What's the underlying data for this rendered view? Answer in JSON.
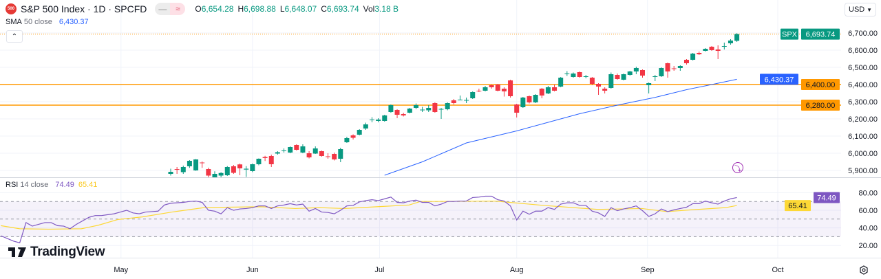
{
  "header": {
    "symbol_logo": "500",
    "title": "S&P 500 Index · 1D · SPCFD",
    "open_label": "O",
    "open": "6,654.28",
    "high_label": "H",
    "high": "6,698.88",
    "low_label": "L",
    "low": "6,648.07",
    "close_label": "C",
    "close": "6,693.74",
    "vol_label": "Vol",
    "vol": "3.18 B",
    "currency": "USD"
  },
  "sma_legend": {
    "name": "SMA",
    "params": "50 close",
    "value": "6,430.37"
  },
  "rsi_legend": {
    "name": "RSI",
    "params": "14 close",
    "value": "74.49",
    "ma_value": "65.41"
  },
  "brand": "TradingView",
  "colors": {
    "up": "#089981",
    "down": "#f23645",
    "sma": "#2962ff",
    "rsi": "#7e57c2",
    "rsi_ma": "#fdd835",
    "hline": "#ff9800"
  },
  "price_axis": {
    "ticks": [
      "6,700.00",
      "6,600.00",
      "6,500.00",
      "6,400.00",
      "6,300.00",
      "6,200.00",
      "6,100.00",
      "6,000.00",
      "5,900.00"
    ],
    "tick_values": [
      6700,
      6600,
      6500,
      6400,
      6300,
      6200,
      6100,
      6000,
      5900
    ],
    "last_price_tag": "SPX",
    "last_price": "6,693.74",
    "last_value": 6693.74,
    "sma_tag": "6,430.37",
    "sma_tag_value": 6430.37,
    "hline_tags": [
      "6,400.00",
      "6,280.00"
    ],
    "hline_values": [
      6400,
      6280
    ]
  },
  "rsi_axis": {
    "ticks": [
      "80.00",
      "60.00",
      "40.00",
      "20.00"
    ],
    "tick_values": [
      80,
      60,
      40,
      20
    ],
    "bands": [
      70,
      50,
      30
    ],
    "rsi_tag": "74.49",
    "rsi_tag_value": 74.49,
    "ma_tag": "65.41",
    "ma_tag_value": 65.41
  },
  "time_axis": [
    {
      "label": "May",
      "bar": -7.9
    },
    {
      "label": "Jun",
      "bar": 13
    },
    {
      "label": "Jul",
      "bar": 33.2
    },
    {
      "label": "Aug",
      "bar": 55
    },
    {
      "label": "Sep",
      "bar": 75.8
    },
    {
      "label": "Oct",
      "bar": 96.5
    }
  ],
  "chart_data": {
    "type": "candlestick",
    "candles": [
      [
        5880,
        5910,
        5870,
        5892
      ],
      [
        5908,
        5920,
        5880,
        5905
      ],
      [
        5890,
        5928,
        5880,
        5920
      ],
      [
        5924,
        5960,
        5915,
        5956
      ],
      [
        5900,
        5966,
        5898,
        5964
      ],
      [
        5946,
        5952,
        5915,
        5942
      ],
      [
        5908,
        5916,
        5850,
        5870
      ],
      [
        5860,
        5895,
        5840,
        5880
      ],
      [
        5870,
        5890,
        5850,
        5885
      ],
      [
        5872,
        5925,
        5868,
        5920
      ],
      [
        5924,
        5932,
        5880,
        5886
      ],
      [
        5935,
        5940,
        5872,
        5912
      ],
      [
        5905,
        5925,
        5862,
        5910
      ],
      [
        5896,
        5940,
        5890,
        5936
      ],
      [
        5936,
        5970,
        5930,
        5968
      ],
      [
        5978,
        5985,
        5955,
        5972
      ],
      [
        5984,
        5992,
        5920,
        5936
      ],
      [
        5998,
        6012,
        5992,
        6006
      ],
      [
        6012,
        6028,
        6004,
        6016
      ],
      [
        6004,
        6040,
        6000,
        6036
      ],
      [
        6048,
        6052,
        6016,
        6020
      ],
      [
        6004,
        6052,
        6000,
        6040
      ],
      [
        6000,
        6012,
        5970,
        5976
      ],
      [
        5998,
        6040,
        5996,
        6028
      ],
      [
        6012,
        6016,
        5980,
        5984
      ],
      [
        5982,
        6000,
        5968,
        5980
      ],
      [
        5996,
        6004,
        5958,
        5964
      ],
      [
        5968,
        6032,
        5948,
        6024
      ],
      [
        6064,
        6096,
        6060,
        6088
      ],
      [
        6104,
        6110,
        6080,
        6090
      ],
      [
        6108,
        6140,
        6104,
        6136
      ],
      [
        6144,
        6178,
        6136,
        6168
      ],
      [
        6192,
        6210,
        6180,
        6196
      ],
      [
        6188,
        6204,
        6180,
        6196
      ],
      [
        6188,
        6224,
        6184,
        6220
      ],
      [
        6240,
        6284,
        6236,
        6280
      ],
      [
        6252,
        6256,
        6204,
        6224
      ],
      [
        6228,
        6236,
        6214,
        6220
      ],
      [
        6236,
        6264,
        6232,
        6260
      ],
      [
        6264,
        6290,
        6256,
        6280
      ],
      [
        6250,
        6270,
        6240,
        6254
      ],
      [
        6250,
        6280,
        6240,
        6264
      ],
      [
        6292,
        6296,
        6236,
        6240
      ],
      [
        6254,
        6264,
        6200,
        6258
      ],
      [
        6256,
        6296,
        6250,
        6292
      ],
      [
        6308,
        6316,
        6284,
        6292
      ],
      [
        6308,
        6336,
        6308,
        6312
      ],
      [
        6308,
        6324,
        6292,
        6310
      ],
      [
        6320,
        6360,
        6316,
        6356
      ],
      [
        6364,
        6376,
        6356,
        6360
      ],
      [
        6364,
        6392,
        6360,
        6384
      ],
      [
        6396,
        6400,
        6376,
        6384
      ],
      [
        6400,
        6404,
        6360,
        6364
      ],
      [
        6376,
        6384,
        6330,
        6360
      ],
      [
        6424,
        6428,
        6324,
        6332
      ],
      [
        6284,
        6288,
        6208,
        6236
      ],
      [
        6268,
        6328,
        6264,
        6324
      ],
      [
        6332,
        6336,
        6290,
        6296
      ],
      [
        6296,
        6344,
        6292,
        6340
      ],
      [
        6376,
        6380,
        6320,
        6336
      ],
      [
        6348,
        6392,
        6344,
        6384
      ],
      [
        6384,
        6400,
        6360,
        6364
      ],
      [
        6388,
        6444,
        6384,
        6440
      ],
      [
        6460,
        6478,
        6450,
        6464
      ],
      [
        6444,
        6470,
        6440,
        6464
      ],
      [
        6472,
        6476,
        6440,
        6444
      ],
      [
        6444,
        6456,
        6436,
        6448
      ],
      [
        6440,
        6444,
        6396,
        6404
      ],
      [
        6404,
        6408,
        6340,
        6388
      ],
      [
        6376,
        6384,
        6348,
        6364
      ],
      [
        6380,
        6470,
        6376,
        6460
      ],
      [
        6456,
        6464,
        6428,
        6432
      ],
      [
        6428,
        6464,
        6424,
        6460
      ],
      [
        6456,
        6480,
        6452,
        6476
      ],
      [
        6476,
        6504,
        6460,
        6496
      ],
      [
        6484,
        6488,
        6440,
        6452
      ],
      [
        6396,
        6412,
        6348,
        6408
      ],
      [
        6444,
        6456,
        6420,
        6448
      ],
      [
        6448,
        6500,
        6444,
        6496
      ],
      [
        6524,
        6528,
        6440,
        6476
      ],
      [
        6494,
        6508,
        6480,
        6492
      ],
      [
        6496,
        6512,
        6480,
        6508
      ],
      [
        6544,
        6548,
        6516,
        6524
      ],
      [
        6544,
        6584,
        6540,
        6580
      ],
      [
        6584,
        6592,
        6572,
        6576
      ],
      [
        6596,
        6612,
        6592,
        6608
      ],
      [
        6620,
        6624,
        6596,
        6600
      ],
      [
        6604,
        6628,
        6548,
        6596
      ],
      [
        6620,
        6644,
        6604,
        6624
      ],
      [
        6640,
        6664,
        6632,
        6656
      ],
      [
        6654.28,
        6698.88,
        6648.07,
        6693.74
      ]
    ],
    "sma50": [
      [
        34,
        5872
      ],
      [
        40,
        5950
      ],
      [
        47,
        6060
      ],
      [
        55,
        6130
      ],
      [
        60,
        6180
      ],
      [
        65,
        6230
      ],
      [
        71,
        6280
      ],
      [
        77,
        6325
      ],
      [
        82,
        6370
      ],
      [
        86,
        6400
      ],
      [
        90,
        6430.37
      ]
    ],
    "rsi_start_bar": -27,
    "rsi": [
      31,
      28,
      25,
      23,
      46,
      42,
      44,
      46,
      46,
      42.5,
      42,
      39,
      44,
      48,
      52,
      54,
      54,
      55,
      56,
      58,
      60,
      57,
      56,
      58,
      58.5,
      59,
      66,
      68,
      68.5,
      69,
      70,
      70.5,
      69,
      60,
      59,
      56,
      63,
      60,
      61.5,
      62,
      63,
      65,
      65,
      62,
      65,
      66,
      67.5,
      66,
      67,
      59,
      62,
      58,
      57.5,
      56,
      60,
      65,
      65.5,
      69.5,
      71,
      72,
      71,
      73,
      75,
      69,
      68.5,
      70.5,
      71.5,
      69,
      69,
      65,
      67,
      70,
      70,
      70.5,
      70.5,
      74.5,
      75,
      76,
      76,
      72,
      70.5,
      65,
      49,
      59,
      55.5,
      59,
      59,
      63,
      61,
      67,
      68.5,
      68.5,
      65.5,
      65.5,
      59,
      57,
      53,
      63,
      59.5,
      61.5,
      63,
      65,
      59.5,
      53,
      56,
      61.5,
      58.5,
      60.5,
      62,
      63.5,
      67.5,
      67.5,
      70.5,
      68.5,
      67,
      70.5,
      73,
      74.49
    ],
    "rsi_ma": [
      [
        -27,
        42.5
      ],
      [
        -24,
        39
      ],
      [
        -19.4,
        38.5
      ],
      [
        -14.2,
        39
      ],
      [
        -11.5,
        43
      ],
      [
        -8.4,
        49.5
      ],
      [
        -4.5,
        52.5
      ],
      [
        0.2,
        58
      ],
      [
        5.3,
        63
      ],
      [
        9.2,
        63.5
      ],
      [
        14.3,
        64
      ],
      [
        19.8,
        62
      ],
      [
        23.6,
        63
      ],
      [
        27.6,
        62
      ],
      [
        34,
        64.5
      ],
      [
        37.9,
        66
      ],
      [
        39.7,
        70
      ],
      [
        51.5,
        70.5
      ],
      [
        59.3,
        65.5
      ],
      [
        67.9,
        61
      ],
      [
        74.9,
        62
      ],
      [
        78.9,
        58.5
      ],
      [
        82.7,
        60.5
      ],
      [
        88.2,
        63
      ],
      [
        90,
        65.41
      ]
    ]
  }
}
